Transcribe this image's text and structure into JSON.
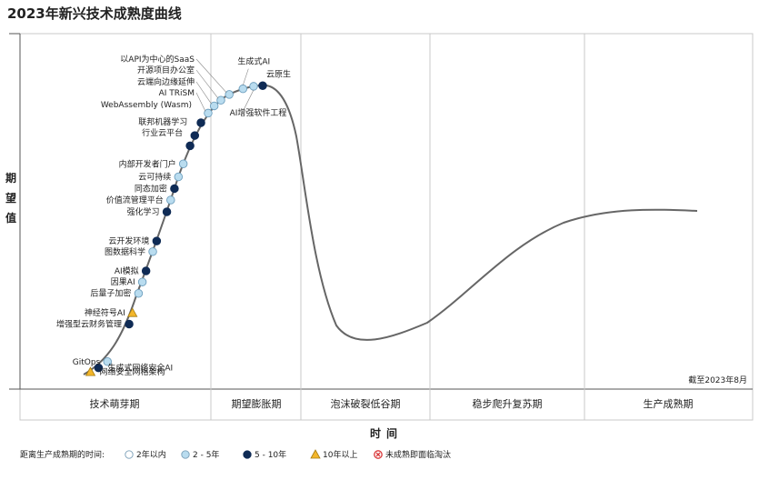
{
  "chart_data": {
    "type": "scatter",
    "title": "2023年新兴技术成熟度曲线",
    "ylabel": "期望值",
    "xlabel": "时间",
    "note": "截至2023年8月",
    "phases": [
      "技术萌芽期",
      "期望膨胀期",
      "泡沫破裂低谷期",
      "稳步爬升复苏期",
      "生产成熟期"
    ],
    "legend_title": "距离生产成熟期的时间:",
    "legend": [
      {
        "key": "lt2",
        "label": "2年以内",
        "shape": "circle",
        "color": "#ffffff"
      },
      {
        "key": "2to5",
        "label": "2 - 5年",
        "shape": "circle",
        "color": "#b9dcef"
      },
      {
        "key": "5to10",
        "label": "5 - 10年",
        "shape": "circle",
        "color": "#0f2b55"
      },
      {
        "key": "gt10",
        "label": "10年以上",
        "shape": "triangle",
        "color": "#f3b62b"
      },
      {
        "key": "obsolete",
        "label": "未成熟即面临淘汰",
        "shape": "x-circle",
        "color": "#d9383a"
      }
    ],
    "points": [
      {
        "name": "网络安全网格架构",
        "t": 0.02,
        "cat": "gt10"
      },
      {
        "name": "生成式网络安全AI",
        "t": 0.045,
        "cat": "5to10"
      },
      {
        "name": "GitOps",
        "t": 0.075,
        "cat": "2to5"
      },
      {
        "name": "增强型云财务管理",
        "t": 0.196,
        "cat": "5to10"
      },
      {
        "name": "神经符号AI",
        "t": 0.228,
        "cat": "gt10"
      },
      {
        "name": "后量子加密",
        "t": 0.284,
        "cat": "2to5"
      },
      {
        "name": "因果AI",
        "t": 0.317,
        "cat": "2to5"
      },
      {
        "name": "AI模拟",
        "t": 0.349,
        "cat": "5to10"
      },
      {
        "name": "图数据科学",
        "t": 0.405,
        "cat": "2to5"
      },
      {
        "name": "云开发环境",
        "t": 0.436,
        "cat": "5to10"
      },
      {
        "name": "强化学习",
        "t": 0.521,
        "cat": "5to10"
      },
      {
        "name": "价值流管理平台",
        "t": 0.555,
        "cat": "2to5"
      },
      {
        "name": "同态加密",
        "t": 0.588,
        "cat": "5to10"
      },
      {
        "name": "云可持续",
        "t": 0.622,
        "cat": "2to5"
      },
      {
        "name": "内部开发者门户",
        "t": 0.66,
        "cat": "2to5"
      },
      {
        "name": "行业云平台",
        "t": 0.713,
        "cat": "5to10"
      },
      {
        "name": "联邦机器学习",
        "t": 0.744,
        "cat": "5to10"
      },
      {
        "name": "WebAssembly (Wasm)",
        "t": 0.783,
        "cat": "5to10"
      },
      {
        "name": "AI TRiSM",
        "t": 0.816,
        "cat": "2to5"
      },
      {
        "name": "云端向边缘延伸",
        "t": 0.842,
        "cat": "2to5"
      },
      {
        "name": "开源项目办公室",
        "t": 0.866,
        "cat": "2to5"
      },
      {
        "name": "以API为中心的SaaS",
        "t": 0.894,
        "cat": "2to5"
      },
      {
        "name": "生成式AI",
        "t": 0.935,
        "cat": "2to5"
      },
      {
        "name": "AI增强软件工程",
        "t": 0.965,
        "cat": "2to5"
      },
      {
        "name": "云原生",
        "t": 0.99,
        "cat": "5to10"
      }
    ]
  }
}
